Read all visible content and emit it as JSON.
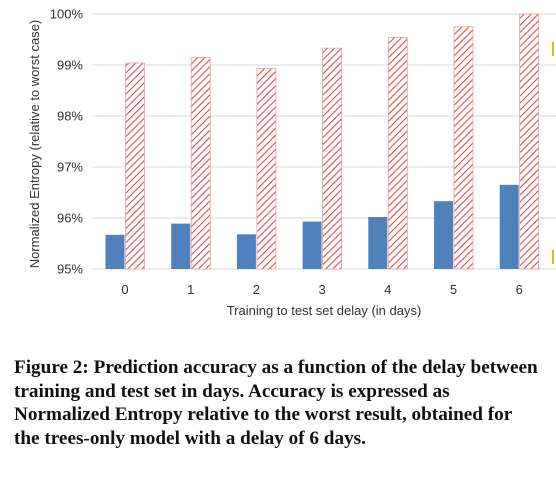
{
  "chart_data": {
    "type": "bar",
    "categories": [
      "0",
      "1",
      "2",
      "3",
      "4",
      "5",
      "6"
    ],
    "series": [
      {
        "values": [
          95.67,
          95.89,
          95.68,
          95.93,
          96.02,
          96.33,
          96.65
        ],
        "color": "#4f81bd",
        "pattern": "solid"
      },
      {
        "values": [
          99.04,
          99.15,
          98.93,
          99.33,
          99.54,
          99.75,
          100.0
        ],
        "color": "#d94f4f",
        "pattern": "diagonal-hatch"
      }
    ],
    "title": "",
    "xlabel": "Training to test set delay (in days)",
    "ylabel": "Normalized Entropy (relative to worst case)",
    "ylim": [
      95,
      100
    ],
    "yticks": [
      95,
      96,
      97,
      98,
      99,
      100
    ],
    "ytick_labels": [
      "95%",
      "96%",
      "97%",
      "98%",
      "99%",
      "100%"
    ],
    "grid": "horizontal",
    "legend": "none"
  },
  "caption": {
    "label": "Figure 2:",
    "text": "Prediction accuracy as a function of the delay between training and test set in days. Accuracy is expressed as Normalized Entropy relative to the worst result, obtained for the trees-only model with a delay of 6 days."
  }
}
